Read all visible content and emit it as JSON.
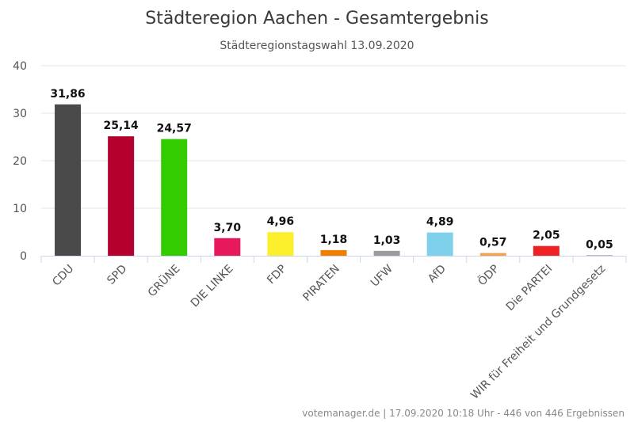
{
  "chart_data": {
    "type": "bar",
    "title": "Städteregion Aachen - Gesamtergebnis",
    "subtitle": "Städteregionstagswahl 13.09.2020",
    "categories": [
      "CDU",
      "SPD",
      "GRÜNE",
      "DIE LINKE",
      "FDP",
      "PIRATEN",
      "UFW",
      "AfD",
      "ÖDP",
      "Die PARTEI",
      "WIR für Freiheit und Grundgesetz"
    ],
    "values": [
      31.86,
      25.14,
      24.57,
      3.7,
      4.96,
      1.18,
      1.03,
      4.89,
      0.57,
      2.05,
      0.05
    ],
    "value_labels": [
      "31,86",
      "25,14",
      "24,57",
      "3,70",
      "4,96",
      "1,18",
      "1,03",
      "4,89",
      "0,57",
      "2,05",
      "0,05"
    ],
    "colors": [
      "#4a4a4a",
      "#b5002e",
      "#33cc00",
      "#e8195a",
      "#fbee2b",
      "#f07f00",
      "#9b9b9b",
      "#7fd0ea",
      "#f5a04a",
      "#ee2222",
      "#777777"
    ],
    "ylim": [
      0,
      40
    ],
    "yticks": [
      0,
      10,
      20,
      30,
      40
    ],
    "grid": true,
    "legend": "none"
  },
  "credits": "votemanager.de | 17.09.2020 10:18 Uhr - 446 von 446 Ergebnissen"
}
